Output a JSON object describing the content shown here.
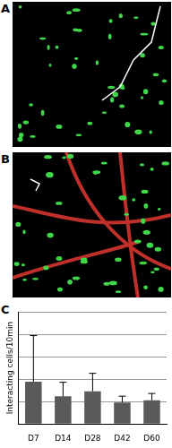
{
  "panel_labels": [
    "A",
    "B",
    "C"
  ],
  "chart_data": {
    "type": "bar",
    "y_label": "Interacting cells/10min",
    "categories": [
      "D7",
      "D14",
      "D28",
      "D42",
      "D60"
    ],
    "values": [
      9.4,
      6.2,
      7.3,
      4.8,
      5.3
    ],
    "errors": [
      10.3,
      3.1,
      4.0,
      1.4,
      1.5
    ],
    "color": "#5a5a5a",
    "ylim": [
      0,
      25
    ],
    "yticks": [
      0,
      5,
      10,
      15,
      20,
      25
    ],
    "grid": true,
    "tick_labels": "x"
  }
}
